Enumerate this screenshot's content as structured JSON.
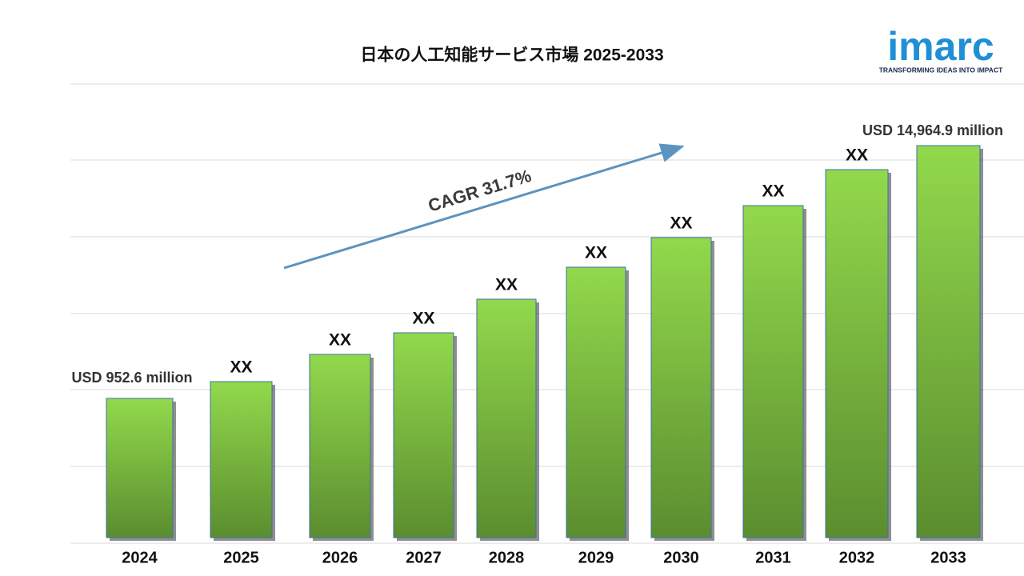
{
  "title": "日本の人工知能サービス市場  2025-2033",
  "cagr": "CAGR 31.7%",
  "logo": {
    "name": "imarc",
    "tagline": "TRANSFORMING IDEAS INTO IMPACT"
  },
  "bars": [
    {
      "year": "2024",
      "label": "USD  952.6 million"
    },
    {
      "year": "2025",
      "label": "XX"
    },
    {
      "year": "2026",
      "label": "XX"
    },
    {
      "year": "2027",
      "label": "XX"
    },
    {
      "year": "2028",
      "label": "XX"
    },
    {
      "year": "2029",
      "label": "XX"
    },
    {
      "year": "2030",
      "label": "XX"
    },
    {
      "year": "2031",
      "label": "XX"
    },
    {
      "year": "2032",
      "label": "XX"
    },
    {
      "year": "2033",
      "label": "USD 14,964.9 million"
    }
  ]
}
